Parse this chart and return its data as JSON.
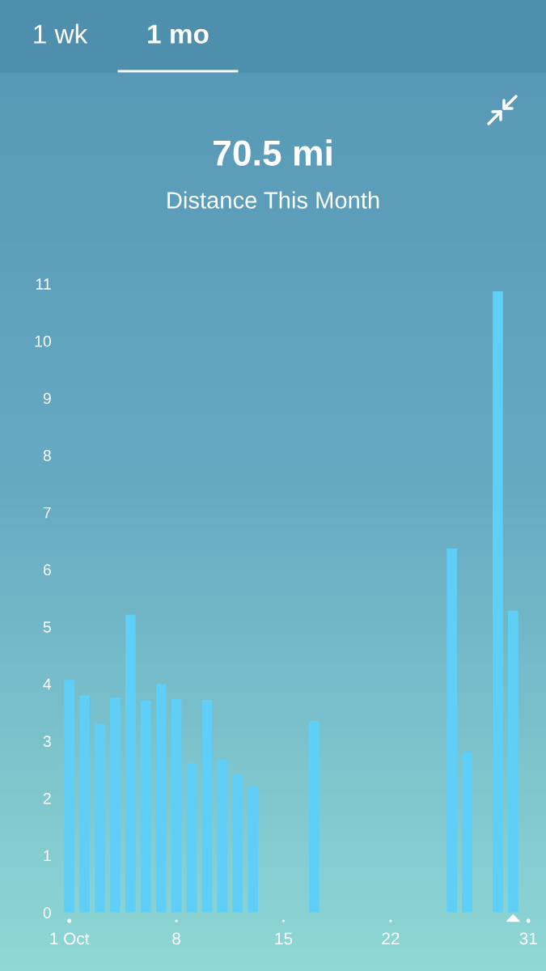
{
  "chart_data": {
    "type": "bar",
    "title": "70.5 mi",
    "subtitle": "Distance This Month",
    "annotations": [
      "1 wk",
      "1 mo"
    ],
    "categories": [
      "1 Oct",
      null,
      null,
      null,
      null,
      null,
      null,
      "8",
      null,
      null,
      null,
      null,
      null,
      null,
      "15",
      null,
      null,
      null,
      null,
      null,
      null,
      "22",
      null,
      null,
      null,
      null,
      null,
      null,
      null,
      null,
      "31"
    ],
    "values": [
      4.07,
      3.8,
      3.3,
      3.76,
      5.21,
      3.71,
      4.0,
      3.73,
      2.62,
      3.72,
      2.68,
      2.42,
      2.2,
      null,
      null,
      null,
      3.35,
      null,
      null,
      null,
      null,
      null,
      null,
      null,
      null,
      6.37,
      2.8,
      null,
      10.87,
      5.28,
      null
    ],
    "color": "#5fcff8",
    "ylim": [
      0,
      11
    ],
    "yticks": [
      0,
      1,
      2,
      3,
      4,
      5,
      6,
      7,
      8,
      9,
      10,
      11
    ]
  }
}
